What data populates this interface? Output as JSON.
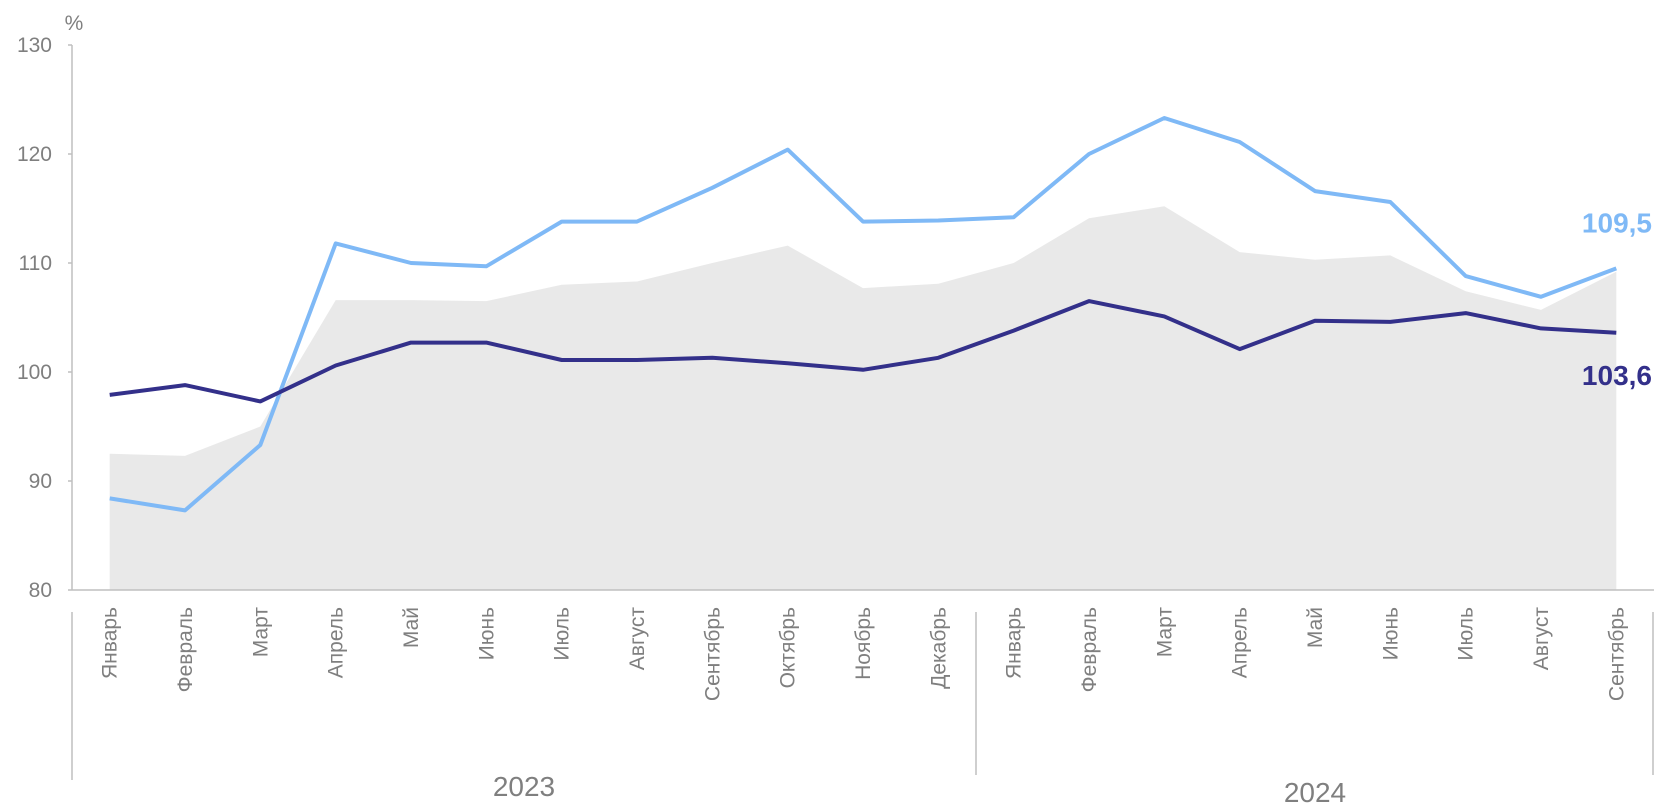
{
  "chart_data": {
    "type": "line",
    "y_unit": "%",
    "categories": [
      "Январь",
      "Февраль",
      "Март",
      "Апрель",
      "Май",
      "Июнь",
      "Июль",
      "Август",
      "Сентябрь",
      "Октябрь",
      "Ноябрь",
      "Декабрь",
      "Январь",
      "Февраль",
      "Март",
      "Апрель",
      "Май",
      "Июнь",
      "Июль",
      "Август",
      "Сентябрь"
    ],
    "x_groups": [
      {
        "label": "2023",
        "size": 12
      },
      {
        "label": "2024",
        "size": 9
      }
    ],
    "series": [
      {
        "type": "area",
        "color": "#e9e9e9",
        "values": [
          92.5,
          92.3,
          95.0,
          106.6,
          106.6,
          106.5,
          108.0,
          108.3,
          110.0,
          111.6,
          107.7,
          108.1,
          110.0,
          114.1,
          115.2,
          111.0,
          110.3,
          110.7,
          107.4,
          105.7,
          109.2
        ]
      },
      {
        "type": "line",
        "color": "#7fb9f6",
        "values": [
          88.4,
          87.3,
          93.3,
          111.8,
          110.0,
          109.7,
          113.8,
          113.8,
          116.9,
          120.4,
          113.8,
          113.9,
          114.2,
          120.0,
          123.3,
          121.1,
          116.6,
          115.6,
          108.8,
          106.9,
          109.5
        ],
        "value_labels": [
          null,
          null,
          null,
          null,
          null,
          null,
          null,
          null,
          null,
          null,
          null,
          null,
          null,
          null,
          null,
          null,
          null,
          null,
          null,
          null,
          "109,5"
        ]
      },
      {
        "type": "line",
        "color": "#33308a",
        "values": [
          97.9,
          98.8,
          97.3,
          100.6,
          102.7,
          102.7,
          101.1,
          101.1,
          101.3,
          100.8,
          100.2,
          101.3,
          103.8,
          106.5,
          105.1,
          102.1,
          104.7,
          104.6,
          105.4,
          104.0,
          103.6
        ],
        "value_labels": [
          null,
          null,
          null,
          null,
          null,
          null,
          null,
          null,
          null,
          null,
          null,
          null,
          null,
          null,
          null,
          null,
          null,
          null,
          null,
          null,
          "103,6"
        ]
      }
    ],
    "ylim": [
      80,
      130
    ],
    "yticks": [
      80,
      90,
      100,
      110,
      120,
      130
    ],
    "grid": false
  }
}
